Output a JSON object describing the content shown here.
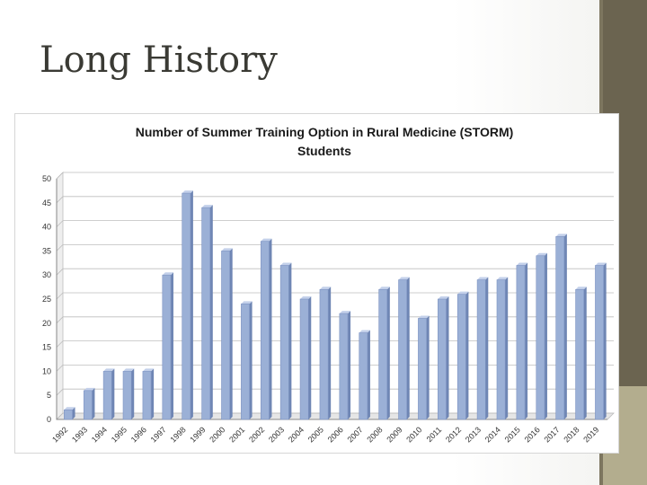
{
  "slide": {
    "title": "Long History"
  },
  "colors": {
    "bar_fill": "#9bb0d6",
    "bar_side": "#6f86b4",
    "bar_top": "#c3d0ea",
    "side_band": "#6b6450",
    "side_accent": "#b3ad8e"
  },
  "chart_data": {
    "type": "bar",
    "title_lines": [
      "Number of Summer Training Option in Rural Medicine (STORM)",
      "Students"
    ],
    "xlabel": "",
    "ylabel": "",
    "ylim": [
      0,
      50
    ],
    "yticks": [
      "0",
      "5",
      "10",
      "15",
      "20",
      "25",
      "30",
      "35",
      "40",
      "45",
      "50"
    ],
    "grid": true,
    "legend": "none",
    "categories": [
      "1992",
      "1993",
      "1994",
      "1995",
      "1996",
      "1997",
      "1998",
      "1999",
      "2000",
      "2001",
      "2002",
      "2003",
      "2004",
      "2005",
      "2006",
      "2007",
      "2008",
      "2009",
      "2010",
      "2011",
      "2012",
      "2013",
      "2014",
      "2015",
      "2016",
      "2017",
      "2018",
      "2019"
    ],
    "values": [
      2,
      6,
      10,
      10,
      10,
      30,
      47,
      44,
      35,
      24,
      37,
      32,
      25,
      27,
      22,
      18,
      27,
      29,
      21,
      25,
      26,
      29,
      29,
      32,
      34,
      38,
      27,
      32
    ]
  }
}
